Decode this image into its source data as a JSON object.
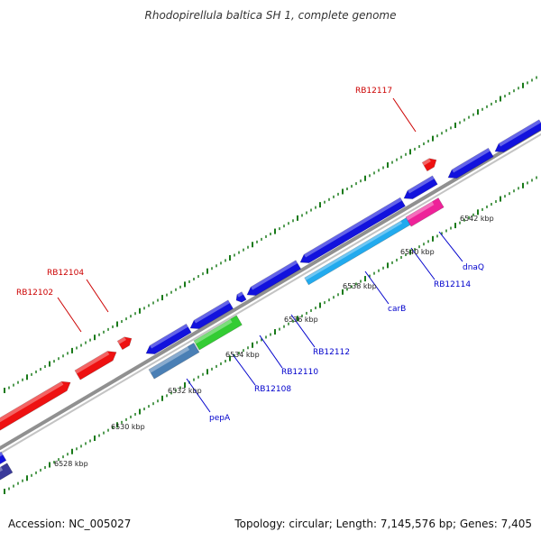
{
  "title": "Rhodopirellula baltica SH 1, complete genome",
  "footer": {
    "accession": "Accession: NC_005027",
    "summary": "Topology: circular; Length: 7,145,576 bp; Genes: 7,405"
  },
  "colors": {
    "backbone": "#8a8a8a",
    "tick": "#1a7a1a",
    "forward_label": "#cc0000",
    "reverse_label": "#0000cc",
    "red": "#ee1111",
    "blue": "#1212dd",
    "green": "#33cc33",
    "cyan": "#22aaee",
    "steel": "#4a7fb5",
    "magenta": "#ee2299",
    "navy": "#3a3a9a"
  },
  "kbp_labels": [
    "6528 kbp",
    "6530 kbp",
    "6532 kbp",
    "6534 kbp",
    "6536 kbp",
    "6538 kbp",
    "6540 kbp",
    "6542 kbp"
  ],
  "gene_labels_forward": [
    "RB12102",
    "RB12104",
    "RB12117"
  ],
  "gene_labels_reverse": [
    "pepA",
    "RB12108",
    "RB12110",
    "RB12112",
    "carB",
    "RB12114",
    "dnaQ"
  ]
}
